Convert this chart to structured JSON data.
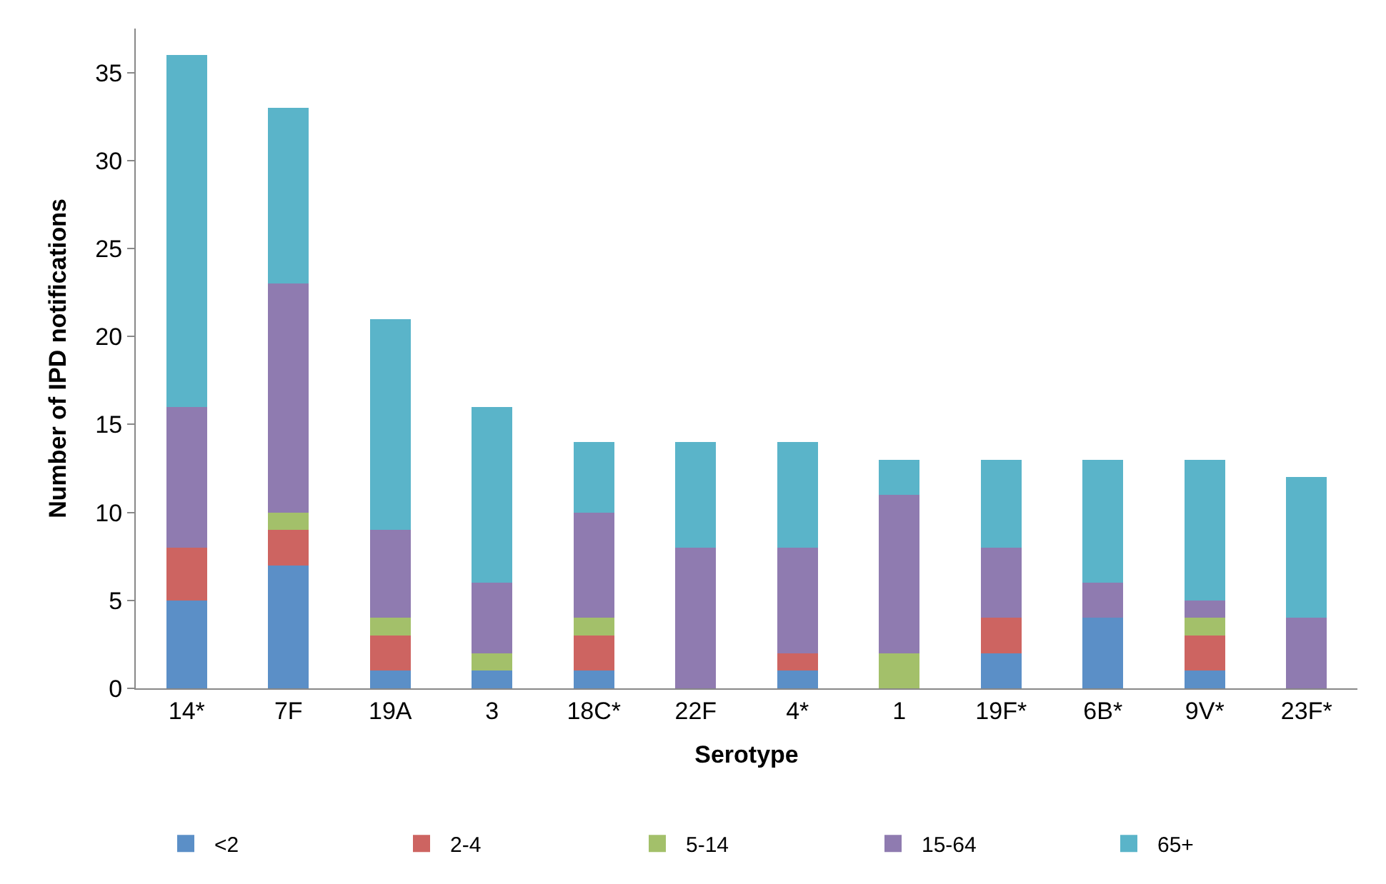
{
  "chart_data": {
    "type": "bar",
    "stacked": true,
    "xlabel": "Serotype",
    "ylabel": "Number of IPD notifications",
    "categories": [
      "14*",
      "7F",
      "19A",
      "3",
      "18C*",
      "22F",
      "4*",
      "1",
      "19F*",
      "6B*",
      "9V*",
      "23F*"
    ],
    "series": [
      {
        "name": "<2",
        "color": "#5b8fc7",
        "values": [
          5,
          7,
          1,
          1,
          1,
          0,
          1,
          0,
          2,
          4,
          1,
          0
        ]
      },
      {
        "name": "2-4",
        "color": "#cd6461",
        "values": [
          3,
          2,
          2,
          0,
          2,
          0,
          1,
          0,
          2,
          0,
          2,
          0
        ]
      },
      {
        "name": "5-14",
        "color": "#a3c06a",
        "values": [
          0,
          1,
          1,
          1,
          1,
          0,
          0,
          2,
          0,
          0,
          1,
          0
        ]
      },
      {
        "name": "15-64",
        "color": "#8f7bb0",
        "values": [
          8,
          13,
          5,
          4,
          6,
          8,
          6,
          9,
          4,
          2,
          1,
          4
        ]
      },
      {
        "name": "65+",
        "color": "#5ab4c9",
        "values": [
          20,
          10,
          12,
          10,
          4,
          6,
          6,
          2,
          5,
          7,
          8,
          8
        ]
      }
    ],
    "ylim": [
      0,
      37.5
    ],
    "yticks": [
      0,
      5,
      10,
      15,
      20,
      25,
      30,
      35
    ],
    "legend": "bottom"
  }
}
